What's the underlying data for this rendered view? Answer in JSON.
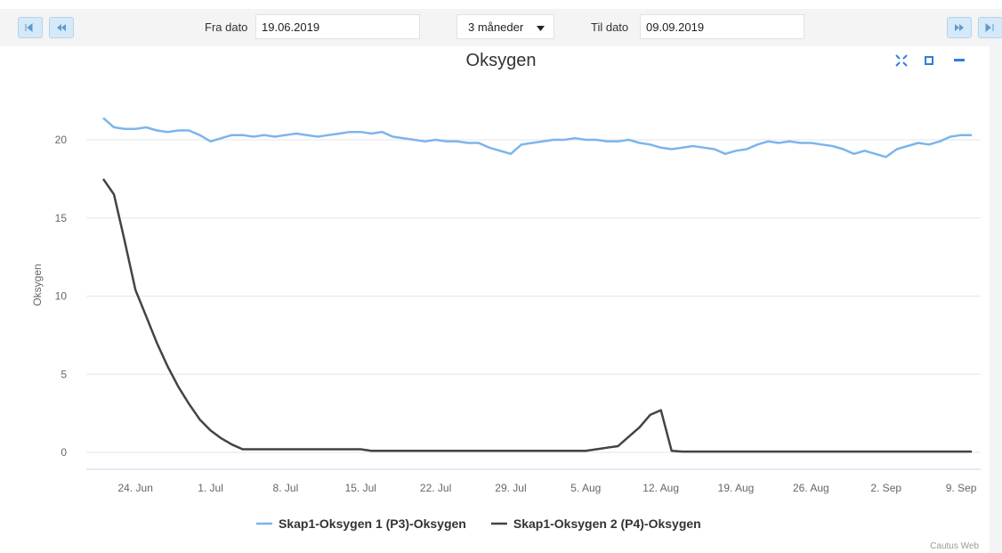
{
  "toolbar": {
    "from_label": "Fra dato",
    "from_date": "19.06.2019",
    "period": "3 måneder",
    "to_label": "Til dato",
    "to_date": "09.09.2019"
  },
  "credit": "Cautus Web",
  "chart_data": {
    "type": "line",
    "title": "Oksygen",
    "y_label": "Oksygen",
    "categories": [
      null,
      null,
      null,
      null,
      "24. Jun",
      null,
      null,
      null,
      null,
      null,
      null,
      "1. Jul",
      null,
      null,
      null,
      null,
      null,
      null,
      "8. Jul",
      null,
      null,
      null,
      null,
      null,
      null,
      "15. Jul",
      null,
      null,
      null,
      null,
      null,
      null,
      "22. Jul",
      null,
      null,
      null,
      null,
      null,
      null,
      "29. Jul",
      null,
      null,
      null,
      null,
      null,
      null,
      "5. Aug",
      null,
      null,
      null,
      null,
      null,
      null,
      "12. Aug",
      null,
      null,
      null,
      null,
      null,
      null,
      "19. Aug",
      null,
      null,
      null,
      null,
      null,
      null,
      "26. Aug",
      null,
      null,
      null,
      null,
      null,
      null,
      "2. Sep",
      null,
      null,
      null,
      null,
      null,
      null,
      "9. Sep",
      null
    ],
    "series": [
      {
        "name": "Skap1-Oksygen 1 (P3)-Oksygen",
        "color": "#7cb5ec",
        "values": [
          null,
          21.4,
          20.8,
          20.7,
          20.7,
          20.8,
          20.6,
          20.5,
          20.6,
          20.6,
          20.3,
          19.9,
          20.1,
          20.3,
          20.3,
          20.2,
          20.3,
          20.2,
          20.3,
          20.4,
          20.3,
          20.2,
          20.3,
          20.4,
          20.5,
          20.5,
          20.4,
          20.5,
          20.2,
          20.1,
          20.0,
          19.9,
          20.0,
          19.9,
          19.9,
          19.8,
          19.8,
          19.5,
          19.3,
          19.1,
          19.7,
          19.8,
          19.9,
          20.0,
          20.0,
          20.1,
          20.0,
          20.0,
          19.9,
          19.9,
          20.0,
          19.8,
          19.7,
          19.5,
          19.4,
          19.5,
          19.6,
          19.5,
          19.4,
          19.1,
          19.3,
          19.4,
          19.7,
          19.9,
          19.8,
          19.9,
          19.8,
          19.8,
          19.7,
          19.6,
          19.4,
          19.1,
          19.3,
          19.1,
          18.9,
          19.4,
          19.6,
          19.8,
          19.7,
          19.9,
          20.2,
          20.3,
          20.3
        ]
      },
      {
        "name": "Skap1-Oksygen 2 (P4)-Oksygen",
        "color": "#434348",
        "values": [
          null,
          17.5,
          16.5,
          13.5,
          10.4,
          8.7,
          7.0,
          5.5,
          4.2,
          3.1,
          2.1,
          1.4,
          0.9,
          0.5,
          0.2,
          0.2,
          0.2,
          0.2,
          0.2,
          0.2,
          0.2,
          0.2,
          0.2,
          0.2,
          0.2,
          0.2,
          0.1,
          0.1,
          0.1,
          0.1,
          0.1,
          0.1,
          0.1,
          0.1,
          0.1,
          0.1,
          0.1,
          0.1,
          0.1,
          0.1,
          0.1,
          0.1,
          0.1,
          0.1,
          0.1,
          0.1,
          0.1,
          0.2,
          0.3,
          0.4,
          1.0,
          1.6,
          2.4,
          2.7,
          0.1,
          0.05,
          0.05,
          0.05,
          0.05,
          0.05,
          0.05,
          0.05,
          0.05,
          0.05,
          0.05,
          0.05,
          0.05,
          0.05,
          0.05,
          0.05,
          0.05,
          0.05,
          0.05,
          0.05,
          0.05,
          0.05,
          0.05,
          0.05,
          0.05,
          0.05,
          0.05,
          0.05,
          0.05
        ]
      }
    ],
    "ylim": [
      -1,
      24
    ],
    "yticks": [
      0,
      5,
      10,
      15,
      20
    ],
    "grid": true
  }
}
